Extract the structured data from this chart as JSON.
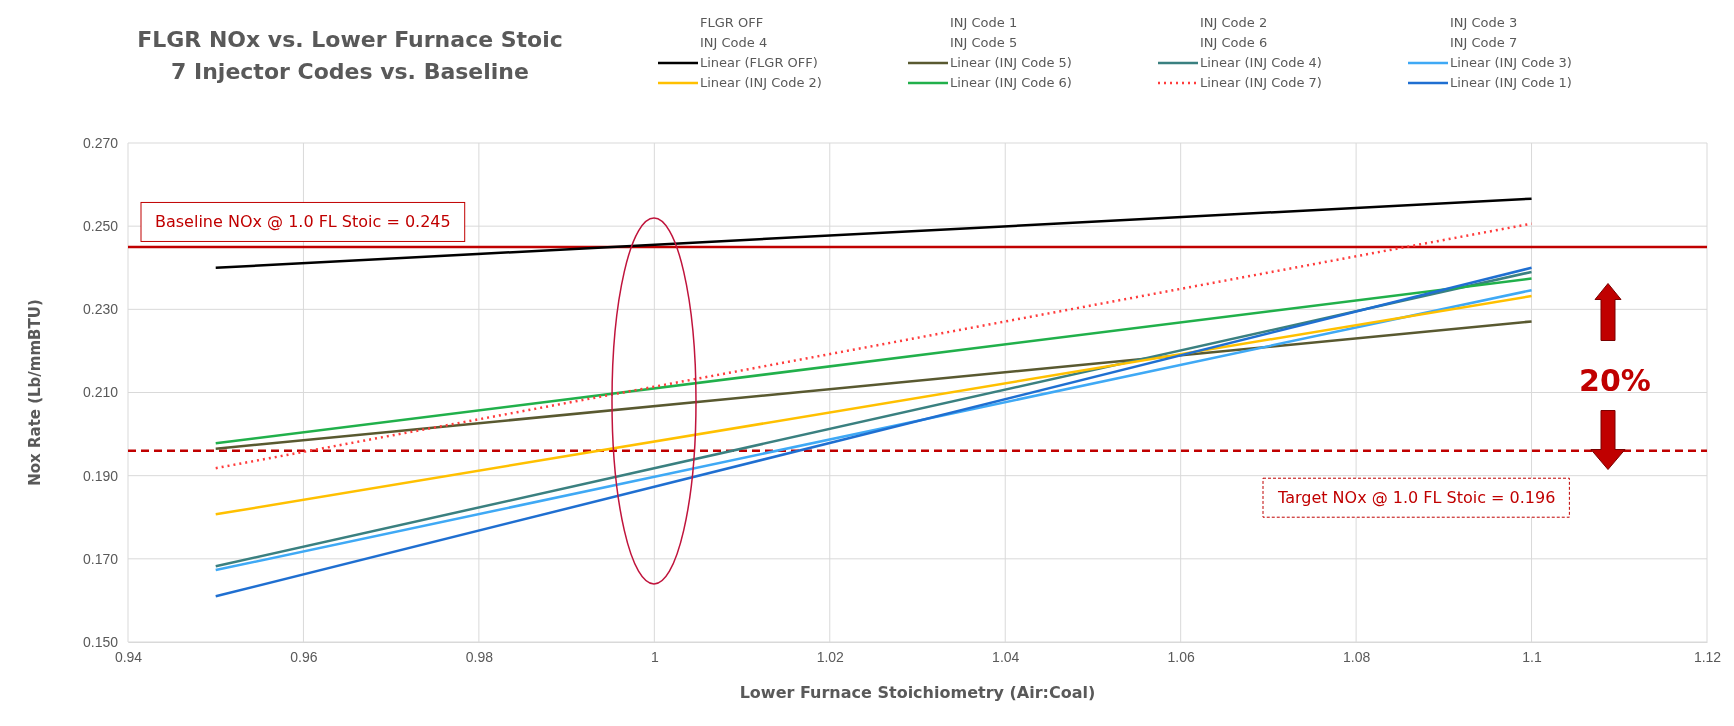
{
  "chart_data": {
    "type": "line",
    "title": "FLGR NOx vs. Lower Furnace Stoic\n7 Injector Codes vs. Baseline",
    "xlabel": "Lower Furnace Stoichiometry (Air:Coal)",
    "ylabel": "Nox Rate (Lb/mmBTU)",
    "x": [
      0.95,
      1.1
    ],
    "series": [
      {
        "name": "Linear (FLGR OFF)",
        "color": "#000000",
        "values": [
          0.24,
          0.2566
        ]
      },
      {
        "name": "Linear (INJ Code 5)",
        "color": "#595930",
        "values": [
          0.1965,
          0.2271
        ]
      },
      {
        "name": "Linear (INJ Code 4)",
        "color": "#3a8080",
        "values": [
          0.1682,
          0.239
        ]
      },
      {
        "name": "Linear (INJ Code 3)",
        "color": "#3fa9f5",
        "values": [
          0.1673,
          0.2346
        ]
      },
      {
        "name": "Linear (INJ Code 2)",
        "color": "#ffc000",
        "values": [
          0.1807,
          0.2332
        ]
      },
      {
        "name": "Linear (INJ Code 6)",
        "color": "#21b04b",
        "values": [
          0.1978,
          0.2374
        ]
      },
      {
        "name": "Linear (INJ Code 7)",
        "color": "#ff3b3b",
        "line_style": "dotted",
        "values": [
          0.1918,
          0.2506
        ]
      },
      {
        "name": "Linear (INJ Code 1)",
        "color": "#1f6fd1",
        "values": [
          0.161,
          0.24
        ]
      }
    ],
    "xlim": [
      0.94,
      1.12
    ],
    "xticks": [
      0.94,
      0.96,
      0.98,
      1,
      1.02,
      1.04,
      1.06,
      1.08,
      1.1,
      1.12
    ],
    "ylim": [
      0.15,
      0.27
    ],
    "yticks": [
      {
        "value": 0.15,
        "label": "0.150"
      },
      {
        "value": 0.17,
        "label": "0.170"
      },
      {
        "value": 0.19,
        "label": "0.190"
      },
      {
        "value": 0.21,
        "label": "0.210"
      },
      {
        "value": 0.23,
        "label": "0.230"
      },
      {
        "value": 0.25,
        "label": "0.250"
      },
      {
        "value": 0.27,
        "label": "0.270"
      }
    ],
    "ref_lines": [
      {
        "axis": "y",
        "value": 0.245,
        "label": "Baseline NOx @ 1.0 FL Stoic = 0.245",
        "color": "#c00000",
        "line_style": "solid"
      },
      {
        "axis": "y",
        "value": 0.196,
        "label": "Target NOx @ 1.0 FL Stoic = 0.196",
        "color": "#c00000",
        "line_style": "dashed"
      }
    ],
    "annotations": [
      "FLGR OFF",
      "INJ Code 1",
      "INJ Code 2",
      "INJ Code 3",
      "INJ Code 4",
      "INJ Code 5",
      "INJ Code 6",
      "INJ Code 7",
      "20%"
    ],
    "grid": true,
    "legend": "top",
    "line_style": "solid",
    "marker": "none"
  }
}
